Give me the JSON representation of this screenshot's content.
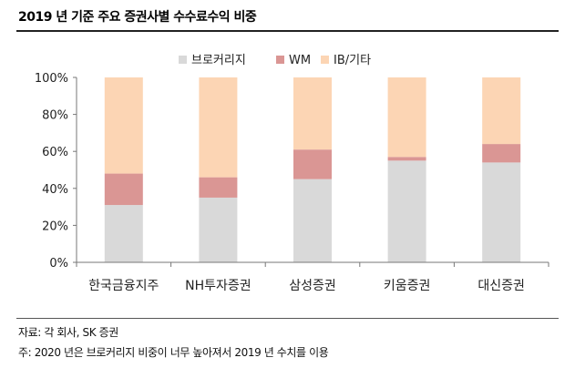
{
  "page": {
    "title": "2019 년 기준 주요 증권사별 수수료수익 비중",
    "source": "자료: 각 회사, SK 증권",
    "footnote": "주: 2020 년은 브로커리지 비중이 너무 높아져서 2019 년 수치를 이용"
  },
  "chart_data": {
    "type": "bar",
    "stacked": true,
    "title": "2019 년 기준 주요 증권사별 수수료수익 비중",
    "categories": [
      "한국금융지주",
      "NH투자증권",
      "삼성증권",
      "키움증권",
      "대신증권"
    ],
    "series": [
      {
        "name": "브로커리지",
        "color": "#d9d9d9",
        "values": [
          31,
          35,
          45,
          55,
          54
        ]
      },
      {
        "name": "WM",
        "color": "#da9694",
        "values": [
          17,
          11,
          16,
          2,
          10
        ]
      },
      {
        "name": "IB/기타",
        "color": "#fcd5b4",
        "values": [
          52,
          54,
          39,
          43,
          36
        ]
      }
    ],
    "ylim": [
      0,
      100
    ],
    "yticks": [
      0,
      20,
      40,
      60,
      80,
      100
    ],
    "ytick_labels": [
      "0%",
      "20%",
      "40%",
      "60%",
      "80%",
      "100%"
    ],
    "legend_position": "top-center",
    "grid": false
  }
}
